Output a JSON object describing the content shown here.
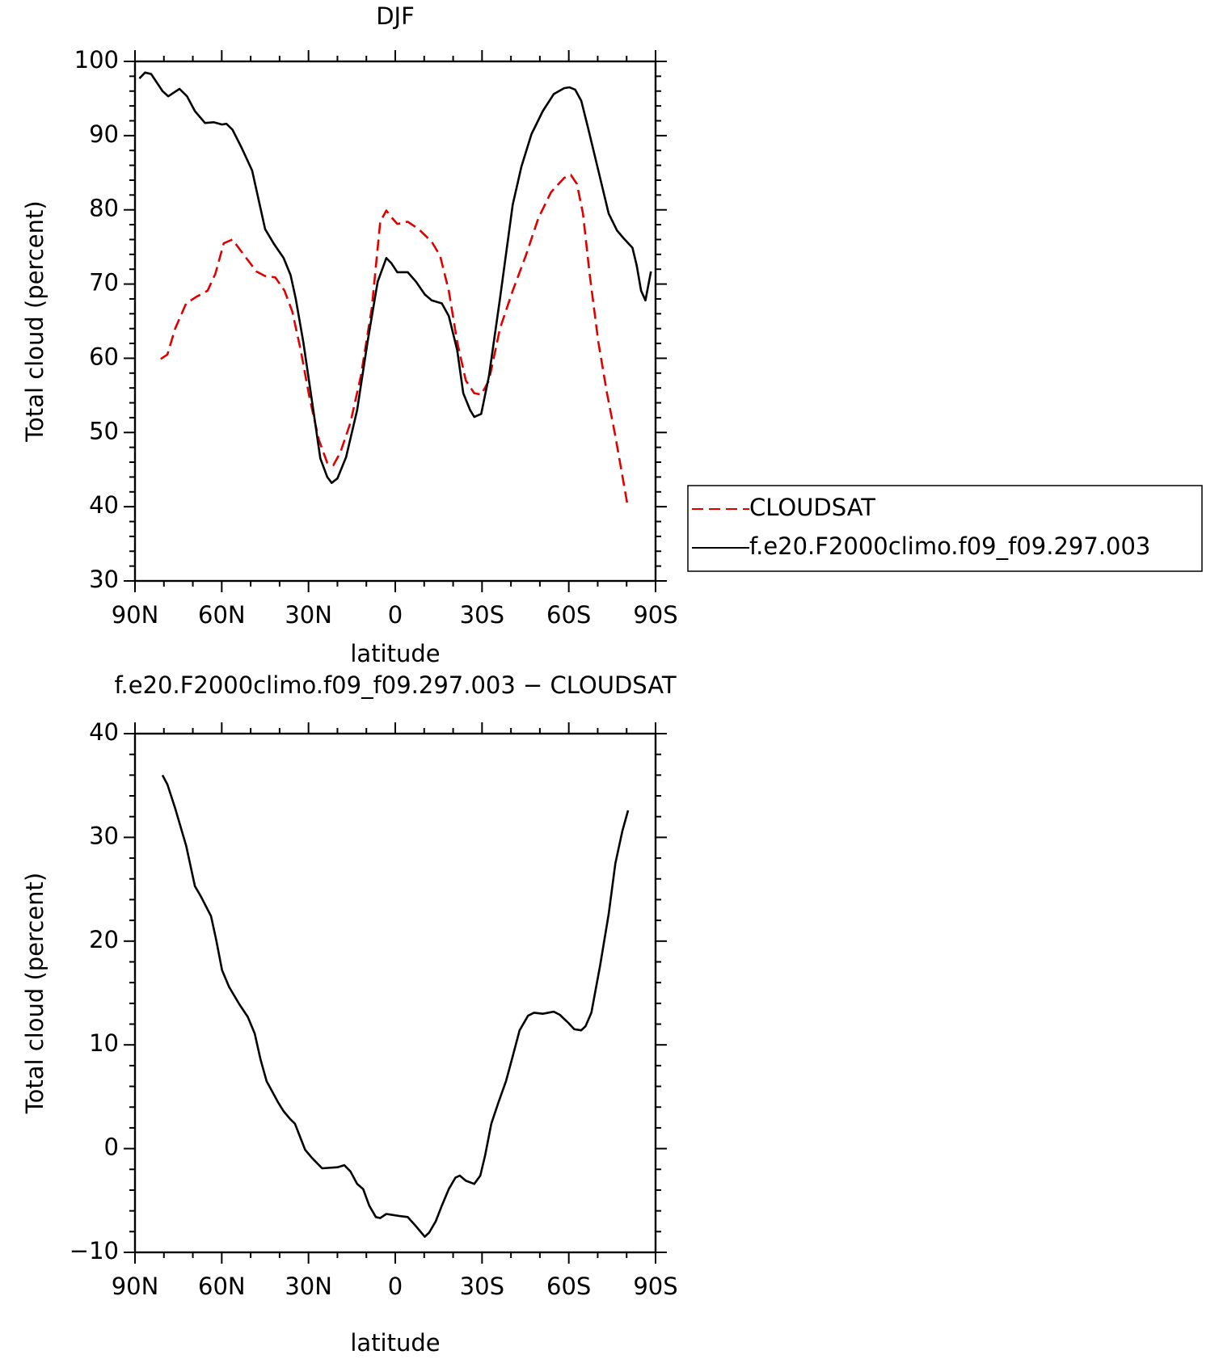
{
  "chart_data": [
    {
      "type": "line",
      "title": "DJF",
      "xlabel": "latitude",
      "ylabel": "Total cloud (percent)",
      "xlim": [
        90,
        -90
      ],
      "xticks": [
        {
          "value": 90,
          "label": "90N"
        },
        {
          "value": 60,
          "label": "60N"
        },
        {
          "value": 30,
          "label": "30N"
        },
        0,
        {
          "value": -30,
          "label": "30S"
        },
        {
          "value": -60,
          "label": "60S"
        },
        {
          "value": -90,
          "label": "90S"
        }
      ],
      "ylim": [
        30,
        100
      ],
      "yticks": [
        30,
        40,
        50,
        60,
        70,
        80,
        90,
        100
      ],
      "legend": "outside-right",
      "series": [
        {
          "name": "CLOUDSAT",
          "color": "#e00000",
          "style": "dashed",
          "x": [
            81.1,
            78.8,
            76.1,
            72.3,
            68.7,
            64.9,
            62.2,
            59.3,
            56.3,
            52.5,
            48,
            45.1,
            41.5,
            38.3,
            35.6,
            32.7,
            29.7,
            26.4,
            23.5,
            21.4,
            19,
            15.5,
            11.9,
            8.1,
            5.2,
            3.1,
            1.3,
            -0.7,
            -4.3,
            -8.1,
            -12.6,
            -15.5,
            -18.5,
            -21.4,
            -24.4,
            -27.3,
            -29.7,
            -32.4,
            -36.2,
            -40.6,
            -45.1,
            -49.5,
            -53.9,
            -58.4,
            -60.7,
            -62.8,
            -64.9,
            -67.2,
            -70.2,
            -73.2,
            -76.1,
            -80.5
          ],
          "values": [
            59.9,
            60.5,
            64,
            67.4,
            68.3,
            69.1,
            71.4,
            75.5,
            76,
            74,
            71.7,
            71.1,
            70.9,
            69.1,
            66.3,
            61.1,
            54.8,
            49,
            45.9,
            45.6,
            47.3,
            51.3,
            57.6,
            66.8,
            78.4,
            79.9,
            79,
            78.1,
            78.4,
            77.4,
            75.7,
            73.8,
            69.1,
            62.2,
            57,
            55.3,
            55.1,
            57,
            64,
            69.1,
            73.8,
            78.9,
            82.4,
            84.3,
            84.7,
            83.5,
            79.5,
            71.4,
            62.2,
            55.3,
            49.5,
            39.8
          ]
        },
        {
          "name": "f.e20.F2000climo.f09_f09.297.003",
          "color": "#000000",
          "style": "solid",
          "x": [
            88.5,
            86.5,
            84.4,
            80.5,
            78.5,
            74.6,
            72,
            69.3,
            65.8,
            62.8,
            59.9,
            58.4,
            56.3,
            53.3,
            49.5,
            45,
            42.1,
            38.6,
            36.2,
            34.4,
            31.8,
            28.8,
            25.9,
            23.5,
            22,
            20,
            17,
            13.2,
            9.6,
            6.1,
            3.1,
            1.3,
            -0.7,
            -4.3,
            -7.2,
            -10.2,
            -12.6,
            -16.1,
            -18.5,
            -21.4,
            -23.5,
            -25.9,
            -27.3,
            -29.7,
            -32.4,
            -36.2,
            -40.6,
            -43.6,
            -47.1,
            -51,
            -54.8,
            -58.4,
            -60.2,
            -62.2,
            -64.3,
            -66.7,
            -70.2,
            -73.8,
            -76.7,
            -79.1,
            -82,
            -83.5,
            -85,
            -86.5,
            -88.4
          ],
          "values": [
            97.7,
            98.5,
            98.3,
            96,
            95.3,
            96.3,
            95.3,
            93.3,
            91.7,
            91.8,
            91.5,
            91.6,
            90.8,
            88.5,
            85.3,
            77.4,
            75.5,
            73.5,
            71.2,
            68,
            62.2,
            54.2,
            46.5,
            44,
            43.2,
            43.8,
            46.7,
            53,
            62.2,
            70.3,
            73.5,
            72.8,
            71.6,
            71.6,
            70.3,
            68.6,
            67.8,
            67.4,
            65.7,
            61.1,
            55.3,
            53,
            52.1,
            52.5,
            57.6,
            68,
            80.7,
            85.8,
            90.2,
            93.3,
            95.6,
            96.4,
            96.5,
            96.2,
            94.7,
            91,
            85.3,
            79.5,
            77.2,
            76.1,
            74.9,
            72.5,
            69.1,
            67.8,
            71.7
          ]
        }
      ]
    },
    {
      "type": "line",
      "title": "f.e20.F2000climo.f09_f09.297.003 − CLOUDSAT",
      "xlabel": "latitude",
      "ylabel": "Total cloud (percent)",
      "xlim": [
        90,
        -90
      ],
      "xticks": [
        {
          "value": 90,
          "label": "90N"
        },
        {
          "value": 60,
          "label": "60N"
        },
        {
          "value": 30,
          "label": "30N"
        },
        0,
        {
          "value": -30,
          "label": "30S"
        },
        {
          "value": -60,
          "label": "60S"
        },
        {
          "value": -90,
          "label": "90S"
        }
      ],
      "ylim": [
        -10,
        40
      ],
      "yticks": [
        {
          "value": -10,
          "label": "−10"
        },
        0,
        10,
        20,
        30,
        40
      ],
      "color": "#000000",
      "x": [
        80.5,
        78.8,
        76.1,
        72.3,
        69.3,
        67.2,
        63.7,
        61.9,
        59.9,
        57.5,
        53.9,
        51,
        48.6,
        46.6,
        44.5,
        40.6,
        38.6,
        36.2,
        34.7,
        31.2,
        28.8,
        25.3,
        20,
        17.6,
        15.5,
        13.2,
        11.1,
        9,
        6.7,
        5.2,
        3.1,
        0.7,
        -1.6,
        -4.3,
        -7.2,
        -10.2,
        -11.7,
        -14,
        -16.1,
        -18.5,
        -20.8,
        -22.3,
        -24.4,
        -27.3,
        -29.4,
        -31.1,
        -33.2,
        -35.6,
        -38.3,
        -40.6,
        -43,
        -45.9,
        -48,
        -51,
        -54.8,
        -56.9,
        -59.9,
        -61.9,
        -64.3,
        -65.8,
        -67.8,
        -70.8,
        -73.8,
        -76.1,
        -78.5,
        -80.5
      ],
      "values": [
        36,
        35.1,
        32.8,
        29.2,
        25.3,
        24.3,
        22.4,
        20.1,
        17.2,
        15.6,
        13.9,
        12.7,
        11.1,
        8.6,
        6.5,
        4.5,
        3.6,
        2.8,
        2.4,
        -0.1,
        -0.9,
        -1.9,
        -1.8,
        -1.6,
        -2.2,
        -3.4,
        -3.9,
        -5.5,
        -6.6,
        -6.7,
        -6.3,
        -6.4,
        -6.5,
        -6.6,
        -7.5,
        -8.5,
        -8.1,
        -7,
        -5.5,
        -3.9,
        -2.8,
        -2.6,
        -3.1,
        -3.4,
        -2.6,
        -0.6,
        2.4,
        4.4,
        6.5,
        8.9,
        11.4,
        12.8,
        13.1,
        13,
        13.2,
        12.9,
        12.1,
        11.5,
        11.4,
        11.8,
        13.1,
        17.6,
        22.6,
        27.5,
        30.6,
        32.6
      ]
    }
  ]
}
